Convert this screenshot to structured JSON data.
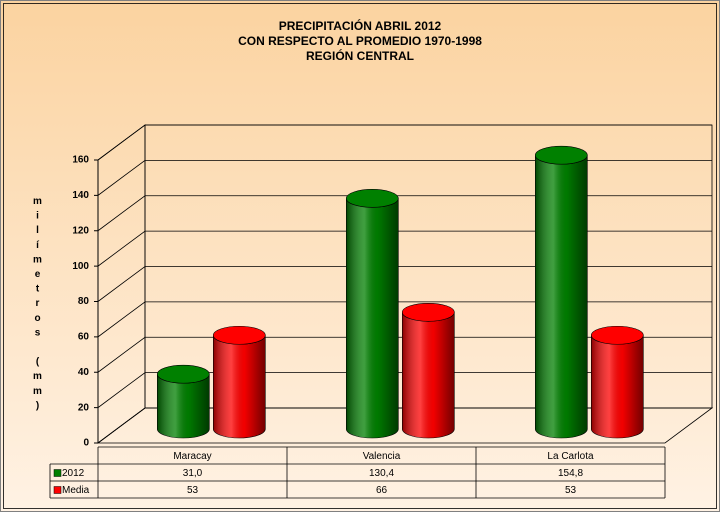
{
  "chart_data": {
    "type": "bar3d",
    "title": [
      "PRECIPITACIÓN ABRIL 2012",
      "CON RESPECTO AL PROMEDIO 1970-1998",
      "REGIÓN CENTRAL"
    ],
    "y_label": "milímetros (mm)",
    "categories": [
      "Maracay",
      "Valencia",
      "La Carlota"
    ],
    "series": [
      {
        "name": "2012",
        "color": "#008000",
        "values": [
          31.0,
          130.4,
          154.8
        ],
        "value_labels": [
          "31,0",
          "130,4",
          "154,8"
        ]
      },
      {
        "name": "Media",
        "color": "#ff0000",
        "values": [
          53,
          66,
          53
        ]
      }
    ],
    "ylim": [
      0,
      160
    ],
    "yticks": [
      0,
      20,
      40,
      60,
      80,
      100,
      120,
      140,
      160
    ],
    "grid": true,
    "data_table": true
  }
}
